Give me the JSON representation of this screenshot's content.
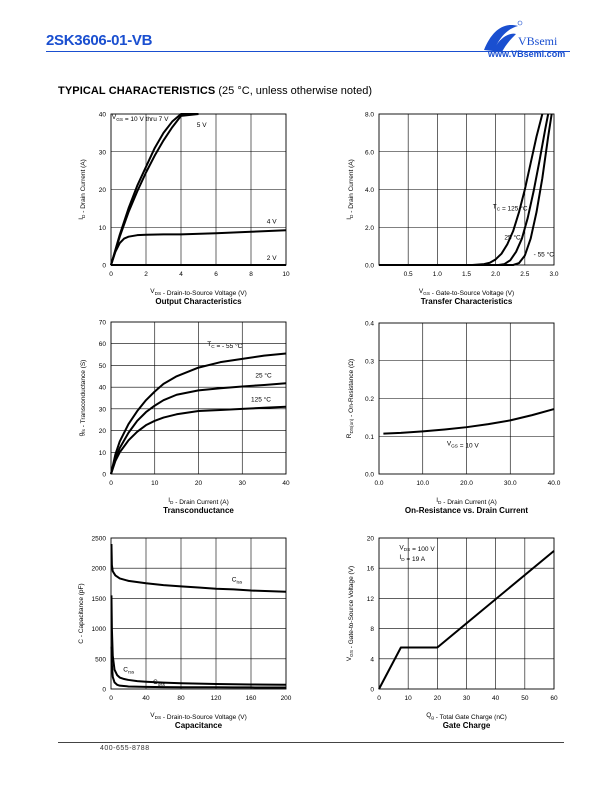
{
  "header": {
    "part_number": "2SK3606-01-VB",
    "brand": "VBsemi",
    "url": "www.VBsemi.com",
    "logo_color": "#1a4fd0"
  },
  "section": {
    "title": "TYPICAL CHARACTERISTICS",
    "note": "(25 °C, unless otherwise noted)"
  },
  "footer": {
    "phone": "400-655-8788"
  },
  "chart_data": [
    {
      "id": "output",
      "type": "line",
      "title": "Output Characteristics",
      "xlabel": "V_DS - Drain-to-Source Voltage (V)",
      "ylabel": "I_D - Drain Current (A)",
      "xlim": [
        0,
        10
      ],
      "ylim": [
        0,
        40
      ],
      "xticks": [
        0,
        2,
        4,
        6,
        8,
        10
      ],
      "yticks": [
        0,
        10,
        20,
        30,
        40
      ],
      "grid": true,
      "series": [
        {
          "name": "V_GS = 10 V thru 7 V",
          "x": [
            0,
            0.5,
            1,
            1.5,
            2,
            2.5,
            3,
            3.5,
            4,
            5
          ],
          "y": [
            0,
            8,
            15,
            21,
            26,
            31,
            35,
            38,
            40,
            40
          ]
        },
        {
          "name": "5 V",
          "x": [
            0,
            0.5,
            1,
            1.5,
            2,
            2.5,
            3,
            3.5,
            4,
            5
          ],
          "y": [
            0,
            7.5,
            14,
            19.5,
            24.5,
            29,
            33,
            36.5,
            39.5,
            40
          ]
        },
        {
          "name": "4 V",
          "x": [
            0,
            0.25,
            0.5,
            0.75,
            1,
            1.5,
            2,
            3,
            4,
            6,
            8,
            10
          ],
          "y": [
            0,
            3.5,
            5.8,
            7,
            7.5,
            7.9,
            8.0,
            8.1,
            8.1,
            8.4,
            8.8,
            9.2
          ]
        },
        {
          "name": "2 V",
          "x": [
            0,
            10
          ],
          "y": [
            0,
            0
          ]
        }
      ],
      "annotations": [
        "V_GS = 10 V thru 7 V",
        "5 V",
        "4 V",
        "2 V"
      ]
    },
    {
      "id": "transfer",
      "type": "line",
      "title": "Transfer Characteristics",
      "xlabel": "V_GS - Gate-to-Source Voltage (V)",
      "ylabel": "I_D - Drain Current (A)",
      "xlim": [
        0,
        3.0
      ],
      "ylim": [
        0,
        8
      ],
      "xticks": [
        0.5,
        1.0,
        1.5,
        2.0,
        2.5,
        3.0
      ],
      "yticks": [
        0,
        2,
        4,
        6,
        8
      ],
      "grid": true,
      "series": [
        {
          "name": "T_C = 125 °C",
          "x": [
            0,
            1.6,
            1.8,
            1.9,
            2.0,
            2.1,
            2.2,
            2.3,
            2.4,
            2.5,
            2.6,
            2.7,
            2.8
          ],
          "y": [
            0,
            0,
            0.05,
            0.12,
            0.3,
            0.6,
            1.1,
            1.8,
            2.8,
            4.0,
            5.4,
            6.8,
            8.0
          ]
        },
        {
          "name": "25 °C",
          "x": [
            0,
            2.05,
            2.15,
            2.25,
            2.35,
            2.45,
            2.55,
            2.65,
            2.75,
            2.85,
            2.9
          ],
          "y": [
            0,
            0,
            0.05,
            0.25,
            0.7,
            1.4,
            2.5,
            3.9,
            5.5,
            7.2,
            8.0
          ]
        },
        {
          "name": "- 55 °C",
          "x": [
            0,
            2.3,
            2.4,
            2.5,
            2.6,
            2.7,
            2.8,
            2.9,
            2.96
          ],
          "y": [
            0,
            0,
            0.1,
            0.5,
            1.4,
            2.8,
            4.6,
            6.8,
            8.0
          ]
        }
      ],
      "annotations": [
        "T_C = 125 °C",
        "25 °C",
        "- 55 °C"
      ]
    },
    {
      "id": "transconductance",
      "type": "line",
      "title": "Transconductance",
      "xlabel": "I_D - Drain Current (A)",
      "ylabel": "g_fs - Transconductance (S)",
      "xlim": [
        0,
        40
      ],
      "ylim": [
        0,
        70
      ],
      "xticks": [
        0,
        10,
        20,
        30,
        40
      ],
      "yticks": [
        0,
        10,
        20,
        30,
        40,
        50,
        60,
        70
      ],
      "grid": true,
      "series": [
        {
          "name": "T_C = - 55 °C",
          "x": [
            0,
            1,
            2,
            4,
            6,
            8,
            10,
            12,
            15,
            20,
            25,
            30,
            35,
            40
          ],
          "y": [
            0,
            9,
            15,
            23,
            29,
            34,
            38,
            41.5,
            45,
            49,
            51.5,
            53,
            54.5,
            55.5
          ]
        },
        {
          "name": "25 °C",
          "x": [
            0,
            1,
            2,
            4,
            6,
            8,
            10,
            12,
            15,
            20,
            25,
            30,
            35,
            40
          ],
          "y": [
            0,
            7,
            12,
            19,
            24.5,
            28.5,
            31.5,
            34,
            36.5,
            38.5,
            39.5,
            40.3,
            41,
            41.8
          ]
        },
        {
          "name": "125 °C",
          "x": [
            0,
            1,
            2,
            4,
            6,
            8,
            10,
            12,
            15,
            20,
            25,
            30,
            35,
            40
          ],
          "y": [
            0,
            6,
            10,
            15.5,
            19.5,
            22.5,
            24.5,
            26,
            27.5,
            29,
            29.5,
            30,
            30.5,
            31
          ]
        }
      ],
      "annotations": [
        "T_C = - 55 °C",
        "25 °C",
        "125 °C"
      ]
    },
    {
      "id": "onresistance",
      "type": "line",
      "title": "On-Resistance vs. Drain Current",
      "xlabel": "I_D - Drain Current (A)",
      "ylabel": "R_DS(on) - On-Resistance (Ω)",
      "xlim": [
        0,
        40
      ],
      "ylim": [
        0,
        0.4
      ],
      "xticks": [
        0,
        10,
        20,
        30,
        40
      ],
      "yticks": [
        0.0,
        0.1,
        0.2,
        0.3,
        0.4
      ],
      "grid": true,
      "series": [
        {
          "name": "V_GS = 10 V",
          "x": [
            1,
            5,
            10,
            15,
            20,
            25,
            30,
            35,
            40
          ],
          "y": [
            0.107,
            0.109,
            0.113,
            0.118,
            0.124,
            0.132,
            0.142,
            0.156,
            0.172
          ]
        }
      ],
      "annotations": [
        "V_GS = 10 V"
      ]
    },
    {
      "id": "capacitance",
      "type": "line",
      "title": "Capacitance",
      "xlabel": "V_DS - Drain-to-Source Voltage (V)",
      "ylabel": "C - Capacitance (pF)",
      "xlim": [
        0,
        200
      ],
      "ylim": [
        0,
        2500
      ],
      "xticks": [
        0,
        40,
        80,
        120,
        160,
        200
      ],
      "yticks": [
        0,
        500,
        1000,
        1500,
        2000,
        2500
      ],
      "grid": true,
      "series": [
        {
          "name": "C_iss",
          "x": [
            0.5,
            1,
            2,
            5,
            10,
            20,
            40,
            60,
            80,
            100,
            120,
            140,
            160,
            180,
            200
          ],
          "y": [
            2400,
            2050,
            1950,
            1880,
            1830,
            1790,
            1750,
            1720,
            1700,
            1680,
            1660,
            1650,
            1630,
            1620,
            1610
          ]
        },
        {
          "name": "C_oss",
          "x": [
            0.5,
            1,
            2,
            4,
            7,
            10,
            15,
            20,
            30,
            40,
            60,
            80,
            100,
            120,
            140,
            160,
            180,
            200
          ],
          "y": [
            1550,
            1000,
            550,
            320,
            230,
            190,
            165,
            150,
            130,
            120,
            105,
            95,
            88,
            83,
            78,
            75,
            72,
            70
          ]
        },
        {
          "name": "C_rss",
          "x": [
            0.5,
            1,
            2,
            4,
            7,
            10,
            20,
            40,
            60,
            80,
            100,
            120,
            140,
            160,
            180,
            200
          ],
          "y": [
            700,
            400,
            200,
            110,
            70,
            55,
            42,
            35,
            32,
            30,
            29,
            28,
            27,
            26,
            25,
            25
          ]
        }
      ],
      "annotations": [
        "C_iss",
        "C_rss",
        "C_oss"
      ]
    },
    {
      "id": "gatecharge",
      "type": "line",
      "title": "Gate Charge",
      "xlabel": "Q_g - Total Gate Charge (nC)",
      "ylabel": "V_GS - Gate-to-Source Voltage (V)",
      "xlim": [
        0,
        60
      ],
      "ylim": [
        0,
        20
      ],
      "xticks": [
        0,
        10,
        20,
        30,
        40,
        50,
        60
      ],
      "yticks": [
        0,
        4,
        8,
        12,
        16,
        20
      ],
      "grid": true,
      "series": [
        {
          "name": "V_DS = 100 V, I_D = 19 A",
          "x": [
            0,
            7.5,
            20,
            60
          ],
          "y": [
            0,
            5.5,
            5.5,
            18.3
          ]
        }
      ],
      "annotations": [
        "V_DS = 100 V",
        "I_D = 19 A"
      ]
    }
  ]
}
